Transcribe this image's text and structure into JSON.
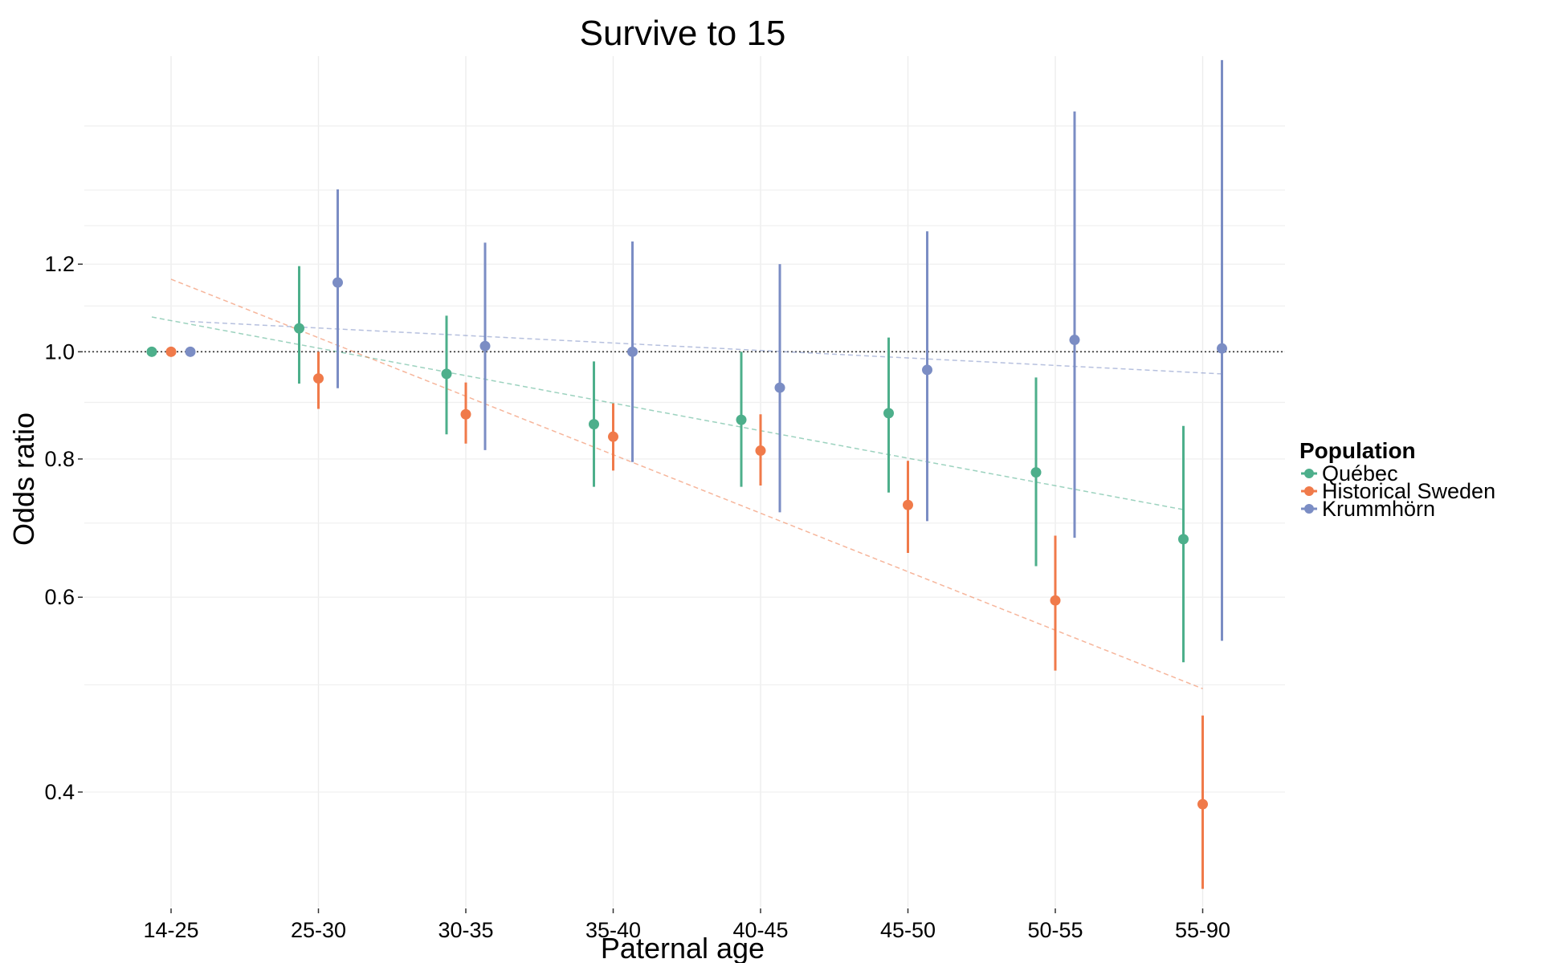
{
  "chart_data": {
    "type": "scatter",
    "subtype": "point-range (odds ratio with confidence intervals), log-scaled y axis",
    "title": "Survive to 15",
    "xlabel": "Paternal age",
    "ylabel": "Odds ratio",
    "categories": [
      "14-25",
      "25-30",
      "30-35",
      "35-40",
      "40-45",
      "45-50",
      "50-55",
      "55-90"
    ],
    "y_scale": "log",
    "ylim": [
      0.315,
      1.85
    ],
    "y_ticks": [
      0.4,
      0.6,
      0.8,
      1.0,
      1.2
    ],
    "y_tick_labels": [
      "0.4",
      "0.6",
      "0.8",
      "1.0",
      "1.2"
    ],
    "reference_line": {
      "y": 1.0,
      "style": "dotted",
      "color": "#333333"
    },
    "grid": true,
    "legend": {
      "title": "Population",
      "position": "right",
      "entries": [
        "Québec",
        "Historical Sweden",
        "Krummhörn"
      ]
    },
    "series": [
      {
        "name": "Québec",
        "color": "#4daf8b",
        "estimate": [
          1.0,
          1.05,
          0.955,
          0.86,
          0.868,
          0.88,
          0.778,
          0.677
        ],
        "lower": [
          1.0,
          0.936,
          0.842,
          0.755,
          0.755,
          0.746,
          0.64,
          0.524
        ],
        "upper": [
          1.0,
          1.195,
          1.078,
          0.98,
          1.0,
          1.03,
          0.948,
          0.857
        ],
        "trend": [
          1.075,
          0.72
        ]
      },
      {
        "name": "Historical Sweden",
        "color": "#f07a4a",
        "estimate": [
          1.0,
          0.946,
          0.878,
          0.838,
          0.814,
          0.727,
          0.596,
          0.39
        ],
        "lower": [
          1.0,
          0.888,
          0.826,
          0.781,
          0.757,
          0.658,
          0.515,
          0.327
        ],
        "upper": [
          1.0,
          1.0,
          0.938,
          0.898,
          0.878,
          0.797,
          0.682,
          0.469
        ],
        "trend": [
          1.163,
          0.496
        ]
      },
      {
        "name": "Krummhörn",
        "color": "#7b8dc4",
        "estimate": [
          1.0,
          1.155,
          1.012,
          1.0,
          0.928,
          0.963,
          1.025,
          1.007
        ],
        "lower": [
          1.0,
          0.927,
          0.815,
          0.795,
          0.716,
          0.703,
          0.679,
          0.548
        ],
        "upper": [
          1.0,
          1.402,
          1.255,
          1.258,
          1.2,
          1.285,
          1.649,
          1.835
        ],
        "trend": [
          1.065,
          0.955
        ]
      }
    ]
  }
}
